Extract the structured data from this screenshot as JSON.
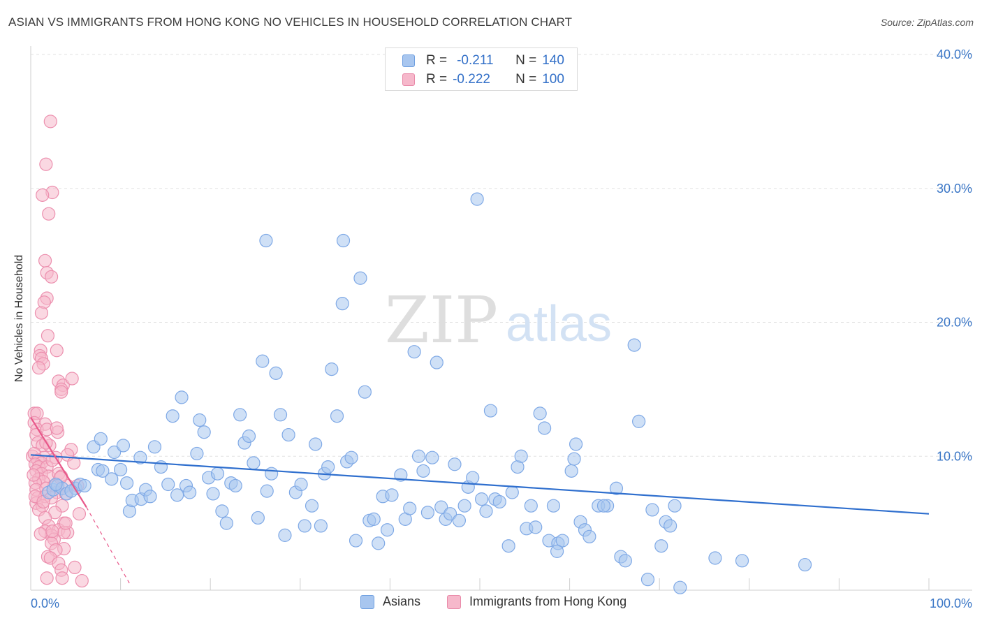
{
  "title": "ASIAN VS IMMIGRANTS FROM HONG KONG NO VEHICLES IN HOUSEHOLD CORRELATION CHART",
  "source": "Source: ZipAtlas.com",
  "watermark": {
    "zip": "ZIP",
    "atlas": "atlas"
  },
  "legend_stats": [
    {
      "r_label": "R =",
      "r_value": "-0.211",
      "n_label": "N =",
      "n_value": "140",
      "color": "#a8c6ef",
      "border": "#6e9fe0"
    },
    {
      "r_label": "R =",
      "r_value": "-0.222",
      "n_label": "N =",
      "n_value": "100",
      "color": "#f6b8cb",
      "border": "#e98aa9"
    }
  ],
  "legend_bottom": [
    {
      "label": "Asians",
      "color": "#a8c6ef",
      "border": "#6e9fe0"
    },
    {
      "label": "Immigrants from Hong Kong",
      "color": "#f6b8cb",
      "border": "#e98aa9"
    }
  ],
  "chart_data": {
    "type": "scatter",
    "title": "ASIAN VS IMMIGRANTS FROM HONG KONG NO VEHICLES IN HOUSEHOLD CORRELATION CHART",
    "xlabel": "",
    "ylabel": "No Vehicles in Household",
    "xlim": [
      0,
      100
    ],
    "ylim": [
      0,
      40
    ],
    "x_tick_labels": [
      "0.0%",
      "100.0%"
    ],
    "y_tick_labels": [
      "10.0%",
      "20.0%",
      "30.0%",
      "40.0%"
    ],
    "y_ticks": [
      10,
      20,
      30,
      40
    ],
    "grid": true,
    "legend_position": "top-center",
    "series": [
      {
        "name": "Asians",
        "color": "#7fa9e6",
        "fill": "#a8c6ef",
        "trend": {
          "x": [
            0,
            100
          ],
          "y": [
            10.1,
            5.7
          ],
          "color": "#2f6fce"
        },
        "points": [
          [
            2,
            7.3
          ],
          [
            2.5,
            7.5
          ],
          [
            3,
            7.8
          ],
          [
            3.5,
            7.6
          ],
          [
            4,
            7.2
          ],
          [
            5,
            7.6
          ],
          [
            5.5,
            7.9
          ],
          [
            6,
            7.8
          ],
          [
            2.8,
            7.9
          ],
          [
            4.5,
            7.4
          ],
          [
            7.5,
            9.0
          ],
          [
            8,
            8.9
          ],
          [
            7,
            10.7
          ],
          [
            7.8,
            11.3
          ],
          [
            9,
            8.3
          ],
          [
            9.3,
            10.3
          ],
          [
            10,
            9.0
          ],
          [
            10.3,
            10.8
          ],
          [
            10.7,
            8.0
          ],
          [
            11,
            5.9
          ],
          [
            11.3,
            6.7
          ],
          [
            12.3,
            6.8
          ],
          [
            12.2,
            9.9
          ],
          [
            12.8,
            7.5
          ],
          [
            13.3,
            7.0
          ],
          [
            13.8,
            10.7
          ],
          [
            14.5,
            9.2
          ],
          [
            15.3,
            7.9
          ],
          [
            15.8,
            13.0
          ],
          [
            16.3,
            7.1
          ],
          [
            16.8,
            14.4
          ],
          [
            17.3,
            7.8
          ],
          [
            17.7,
            7.3
          ],
          [
            18.5,
            10.2
          ],
          [
            18.8,
            12.7
          ],
          [
            19.3,
            11.8
          ],
          [
            19.8,
            8.4
          ],
          [
            20.3,
            7.2
          ],
          [
            20.8,
            8.7
          ],
          [
            21.3,
            5.9
          ],
          [
            21.8,
            5.0
          ],
          [
            22.3,
            8.0
          ],
          [
            22.8,
            7.8
          ],
          [
            23.3,
            13.1
          ],
          [
            23.8,
            11.0
          ],
          [
            24.3,
            11.5
          ],
          [
            24.8,
            9.5
          ],
          [
            25.3,
            5.4
          ],
          [
            25.8,
            17.1
          ],
          [
            26.3,
            7.4
          ],
          [
            26.8,
            8.7
          ],
          [
            27.3,
            16.2
          ],
          [
            27.8,
            13.1
          ],
          [
            28.3,
            4.1
          ],
          [
            28.7,
            11.6
          ],
          [
            29.5,
            7.3
          ],
          [
            30.1,
            7.9
          ],
          [
            30.5,
            4.8
          ],
          [
            31.3,
            6.3
          ],
          [
            31.7,
            10.9
          ],
          [
            32.3,
            4.8
          ],
          [
            32.7,
            8.7
          ],
          [
            33.1,
            9.2
          ],
          [
            33.5,
            16.5
          ],
          [
            34.1,
            13.0
          ],
          [
            34.7,
            21.4
          ],
          [
            35.2,
            9.6
          ],
          [
            35.7,
            9.9
          ],
          [
            36.2,
            3.7
          ],
          [
            36.7,
            23.3
          ],
          [
            37.2,
            14.8
          ],
          [
            37.7,
            5.2
          ],
          [
            38.2,
            5.3
          ],
          [
            38.7,
            3.5
          ],
          [
            39.2,
            7.0
          ],
          [
            39.7,
            4.5
          ],
          [
            40.2,
            7.1
          ],
          [
            41.2,
            8.6
          ],
          [
            41.7,
            5.3
          ],
          [
            42.2,
            6.1
          ],
          [
            42.7,
            17.8
          ],
          [
            43.2,
            10.0
          ],
          [
            43.7,
            8.9
          ],
          [
            44.2,
            5.8
          ],
          [
            44.7,
            9.9
          ],
          [
            45.2,
            17.0
          ],
          [
            45.7,
            6.2
          ],
          [
            46.2,
            5.3
          ],
          [
            46.7,
            5.7
          ],
          [
            47.2,
            9.4
          ],
          [
            47.7,
            5.2
          ],
          [
            48.7,
            7.7
          ],
          [
            49.2,
            8.4
          ],
          [
            49.7,
            29.2
          ],
          [
            50.2,
            6.8
          ],
          [
            50.7,
            5.9
          ],
          [
            51.2,
            13.4
          ],
          [
            51.7,
            6.8
          ],
          [
            52.2,
            6.6
          ],
          [
            53.2,
            3.3
          ],
          [
            53.6,
            7.3
          ],
          [
            54.2,
            9.2
          ],
          [
            54.6,
            10.0
          ],
          [
            55.2,
            4.6
          ],
          [
            55.7,
            6.3
          ],
          [
            56.2,
            4.7
          ],
          [
            56.7,
            13.2
          ],
          [
            57.2,
            12.1
          ],
          [
            57.7,
            3.7
          ],
          [
            58.2,
            6.3
          ],
          [
            58.7,
            3.5
          ],
          [
            59.2,
            3.7
          ],
          [
            60.2,
            8.9
          ],
          [
            60.5,
            9.8
          ],
          [
            60.7,
            10.9
          ],
          [
            61.2,
            5.1
          ],
          [
            61.7,
            4.5
          ],
          [
            62.2,
            4.0
          ],
          [
            63.2,
            6.3
          ],
          [
            64.2,
            6.3
          ],
          [
            65.2,
            7.6
          ],
          [
            65.7,
            2.5
          ],
          [
            66.2,
            2.2
          ],
          [
            67.2,
            18.3
          ],
          [
            67.7,
            12.6
          ],
          [
            68.7,
            0.8
          ],
          [
            69.2,
            6.0
          ],
          [
            70.2,
            3.3
          ],
          [
            70.7,
            5.1
          ],
          [
            71.2,
            4.8
          ],
          [
            71.7,
            6.3
          ],
          [
            76.2,
            2.4
          ],
          [
            79.2,
            2.2
          ],
          [
            86.2,
            1.9
          ],
          [
            72.3,
            0.2
          ],
          [
            26.2,
            26.1
          ],
          [
            34.8,
            26.1
          ],
          [
            58.6,
            2.9
          ],
          [
            63.8,
            6.3
          ],
          [
            48.3,
            6.3
          ]
        ]
      },
      {
        "name": "Immigrants from Hong Kong",
        "color": "#ec8fae",
        "fill": "#f6b8cb",
        "trend": {
          "x": [
            0,
            6.2
          ],
          "y": [
            12.9,
            6.2
          ],
          "color": "#e8588a",
          "dash_to": {
            "x": 11,
            "y": 0.5
          }
        },
        "points": [
          [
            2.2,
            35.0
          ],
          [
            1.7,
            31.8
          ],
          [
            2.4,
            29.7
          ],
          [
            1.3,
            29.5
          ],
          [
            2.0,
            28.1
          ],
          [
            1.6,
            24.6
          ],
          [
            1.8,
            23.7
          ],
          [
            2.3,
            23.4
          ],
          [
            1.8,
            21.8
          ],
          [
            1.5,
            21.5
          ],
          [
            1.2,
            20.7
          ],
          [
            1.9,
            19.0
          ],
          [
            1.1,
            17.9
          ],
          [
            2.9,
            17.9
          ],
          [
            1.0,
            17.5
          ],
          [
            1.2,
            17.3
          ],
          [
            1.4,
            16.9
          ],
          [
            0.9,
            16.6
          ],
          [
            3.1,
            15.6
          ],
          [
            3.6,
            15.3
          ],
          [
            3.4,
            15.0
          ],
          [
            4.6,
            15.8
          ],
          [
            3.4,
            14.8
          ],
          [
            0.4,
            13.2
          ],
          [
            0.7,
            13.2
          ],
          [
            0.4,
            12.5
          ],
          [
            1.6,
            12.4
          ],
          [
            0.7,
            12.0
          ],
          [
            1.8,
            12.0
          ],
          [
            3.0,
            11.8
          ],
          [
            0.6,
            11.6
          ],
          [
            0.8,
            11.0
          ],
          [
            1.3,
            10.8
          ],
          [
            2.1,
            10.8
          ],
          [
            4.5,
            10.5
          ],
          [
            0.2,
            10.0
          ],
          [
            0.4,
            10.2
          ],
          [
            1.5,
            9.9
          ],
          [
            2.8,
            9.9
          ],
          [
            4.1,
            10.1
          ],
          [
            0.8,
            9.7
          ],
          [
            1.2,
            9.5
          ],
          [
            0.5,
            9.4
          ],
          [
            0.9,
            9.2
          ],
          [
            1.8,
            9.2
          ],
          [
            4.8,
            9.5
          ],
          [
            0.6,
            8.9
          ],
          [
            1.2,
            8.7
          ],
          [
            2.0,
            8.5
          ],
          [
            3.1,
            8.7
          ],
          [
            3.4,
            8.5
          ],
          [
            0.9,
            8.3
          ],
          [
            1.4,
            8.1
          ],
          [
            0.5,
            8.0
          ],
          [
            2.6,
            7.8
          ],
          [
            4.1,
            7.8
          ],
          [
            0.6,
            7.5
          ],
          [
            1.7,
            7.6
          ],
          [
            2.9,
            7.3
          ],
          [
            3.9,
            7.2
          ],
          [
            5.2,
            7.8
          ],
          [
            0.8,
            6.9
          ],
          [
            1.6,
            7.0
          ],
          [
            2.3,
            6.9
          ],
          [
            0.6,
            6.5
          ],
          [
            1.3,
            6.3
          ],
          [
            3.5,
            6.3
          ],
          [
            0.9,
            6.0
          ],
          [
            2.7,
            5.8
          ],
          [
            5.4,
            5.7
          ],
          [
            1.6,
            5.4
          ],
          [
            3.7,
            5.0
          ],
          [
            2.0,
            4.8
          ],
          [
            3.1,
            4.5
          ],
          [
            4.1,
            4.3
          ],
          [
            1.6,
            4.4
          ],
          [
            2.3,
            4.1
          ],
          [
            1.1,
            4.2
          ],
          [
            3.7,
            4.3
          ],
          [
            2.6,
            3.8
          ],
          [
            2.3,
            3.5
          ],
          [
            3.7,
            3.1
          ],
          [
            2.8,
            3.0
          ],
          [
            1.9,
            2.5
          ],
          [
            2.2,
            2.4
          ],
          [
            3.1,
            2.0
          ],
          [
            4.9,
            1.7
          ],
          [
            3.4,
            1.5
          ],
          [
            1.8,
            0.9
          ],
          [
            3.5,
            0.9
          ],
          [
            5.7,
            0.7
          ],
          [
            2.4,
            4.4
          ],
          [
            3.9,
            5.0
          ],
          [
            1.7,
            11.0
          ],
          [
            2.9,
            12.1
          ],
          [
            0.3,
            8.6
          ],
          [
            0.5,
            7.0
          ],
          [
            2.4,
            9.7
          ],
          [
            3.3,
            8.4
          ],
          [
            1.4,
            6.6
          ]
        ]
      }
    ]
  }
}
